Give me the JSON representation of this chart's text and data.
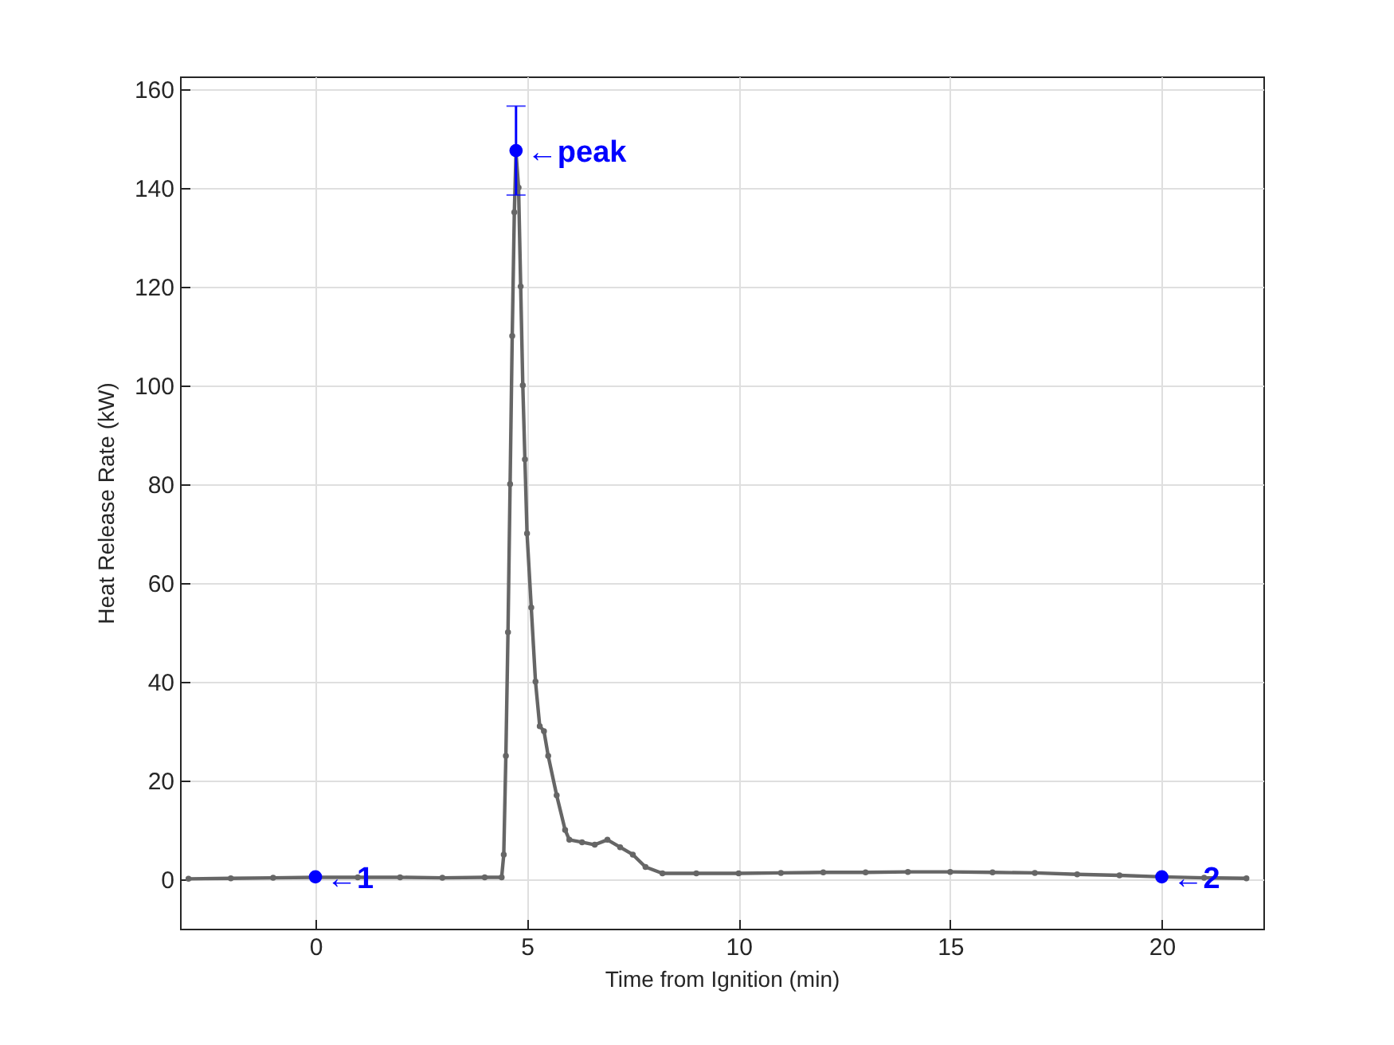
{
  "chart_data": {
    "type": "line",
    "xlabel": "Time from Ignition (min)",
    "ylabel": "Heat Release Rate (kW)",
    "xlim": [
      -3.2,
      22.4
    ],
    "xticks": [
      0,
      5,
      10,
      15,
      20
    ],
    "ylim": [
      -10,
      162.5
    ],
    "yticks": [
      0,
      20,
      40,
      60,
      80,
      100,
      120,
      140,
      160
    ],
    "grid": true,
    "marker": "circle",
    "line_style": "solid",
    "series": [
      {
        "color": "#666666",
        "x": [
          -3,
          -2,
          -1,
          0,
          1,
          2,
          3,
          4,
          4.4,
          4.45,
          4.5,
          4.55,
          4.6,
          4.65,
          4.7,
          4.74,
          4.8,
          4.85,
          4.9,
          4.95,
          5.0,
          5.1,
          5.2,
          5.3,
          5.4,
          5.5,
          5.7,
          5.9,
          6.0,
          6.3,
          6.6,
          6.9,
          7.2,
          7.5,
          7.8,
          8.2,
          9,
          10,
          11,
          12,
          13,
          14,
          15,
          16,
          17,
          18,
          19,
          20,
          21,
          22
        ],
        "values": [
          0.1,
          0.2,
          0.3,
          0.4,
          0.4,
          0.4,
          0.3,
          0.4,
          0.4,
          5,
          25,
          50,
          80,
          110,
          135,
          147,
          140,
          120,
          100,
          85,
          70,
          55,
          40,
          31,
          30,
          25,
          17,
          10,
          8,
          7.5,
          7,
          8,
          6.5,
          5,
          2.5,
          1.2,
          1.2,
          1.2,
          1.3,
          1.4,
          1.4,
          1.5,
          1.5,
          1.4,
          1.3,
          1.0,
          0.8,
          0.5,
          0.3,
          0.2
        ]
      },
      {
        "type": "scatter",
        "color": "#0000ff",
        "x": [
          0,
          4.74,
          20
        ],
        "values": [
          0.5,
          147.5,
          0.5
        ],
        "errors": [
          null,
          [
            138.5,
            156.5
          ],
          null
        ]
      }
    ],
    "annotations": [
      {
        "text": "←1",
        "x": 0,
        "y": 0.5
      },
      {
        "text": "←peak",
        "x": 4.74,
        "y": 147.5
      },
      {
        "text": "←2",
        "x": 20,
        "y": 0.5
      }
    ]
  }
}
